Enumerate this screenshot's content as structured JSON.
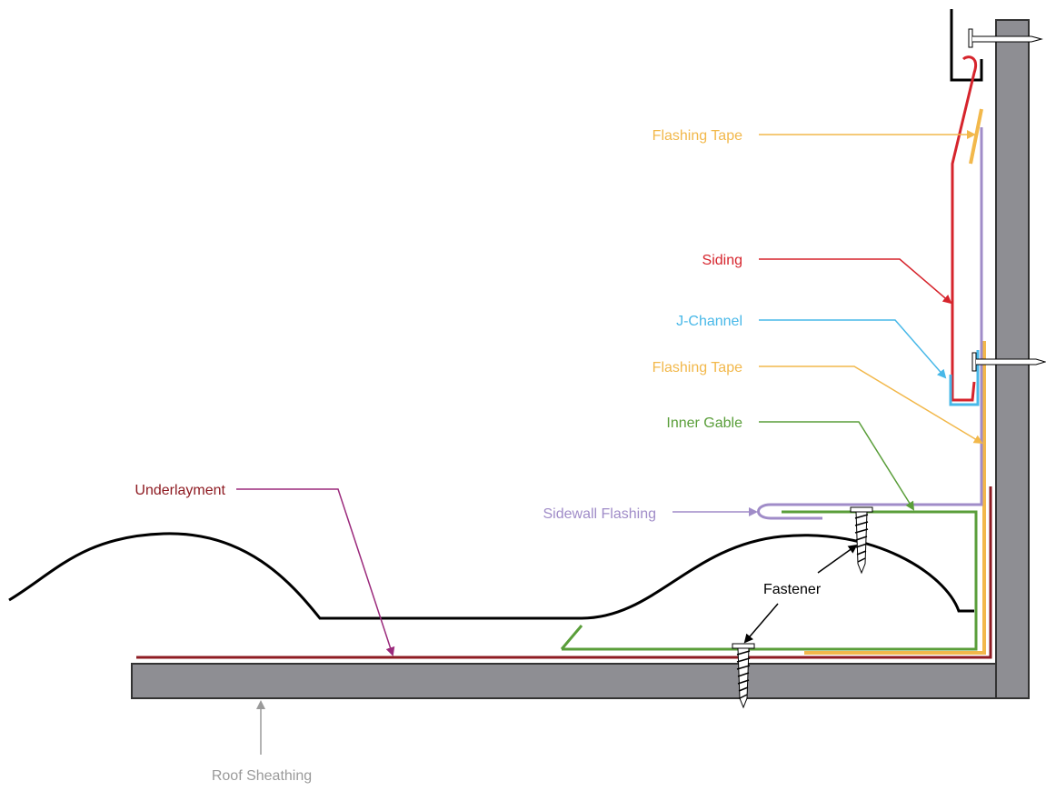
{
  "labels": {
    "flashing_tape_top": "Flashing Tape",
    "siding": "Siding",
    "j_channel": "J-Channel",
    "flashing_tape_bottom": "Flashing Tape",
    "inner_gable": "Inner Gable",
    "underlayment": "Underlayment",
    "sidewall_flashing": "Sidewall Flashing",
    "fastener": "Fastener",
    "roof_sheathing": "Roof Sheathing"
  },
  "colors": {
    "wall": "#8e8e93",
    "siding": "#d6242c",
    "flashing_tape": "#f2b84b",
    "j_channel": "#48b8e8",
    "inner_gable": "#5a9e3a",
    "underlayment": "#8e1b22",
    "sidewall_flashing": "#a08cc8",
    "roofing": "#000000",
    "roof_sheathing_label": "#9a9a9a"
  }
}
